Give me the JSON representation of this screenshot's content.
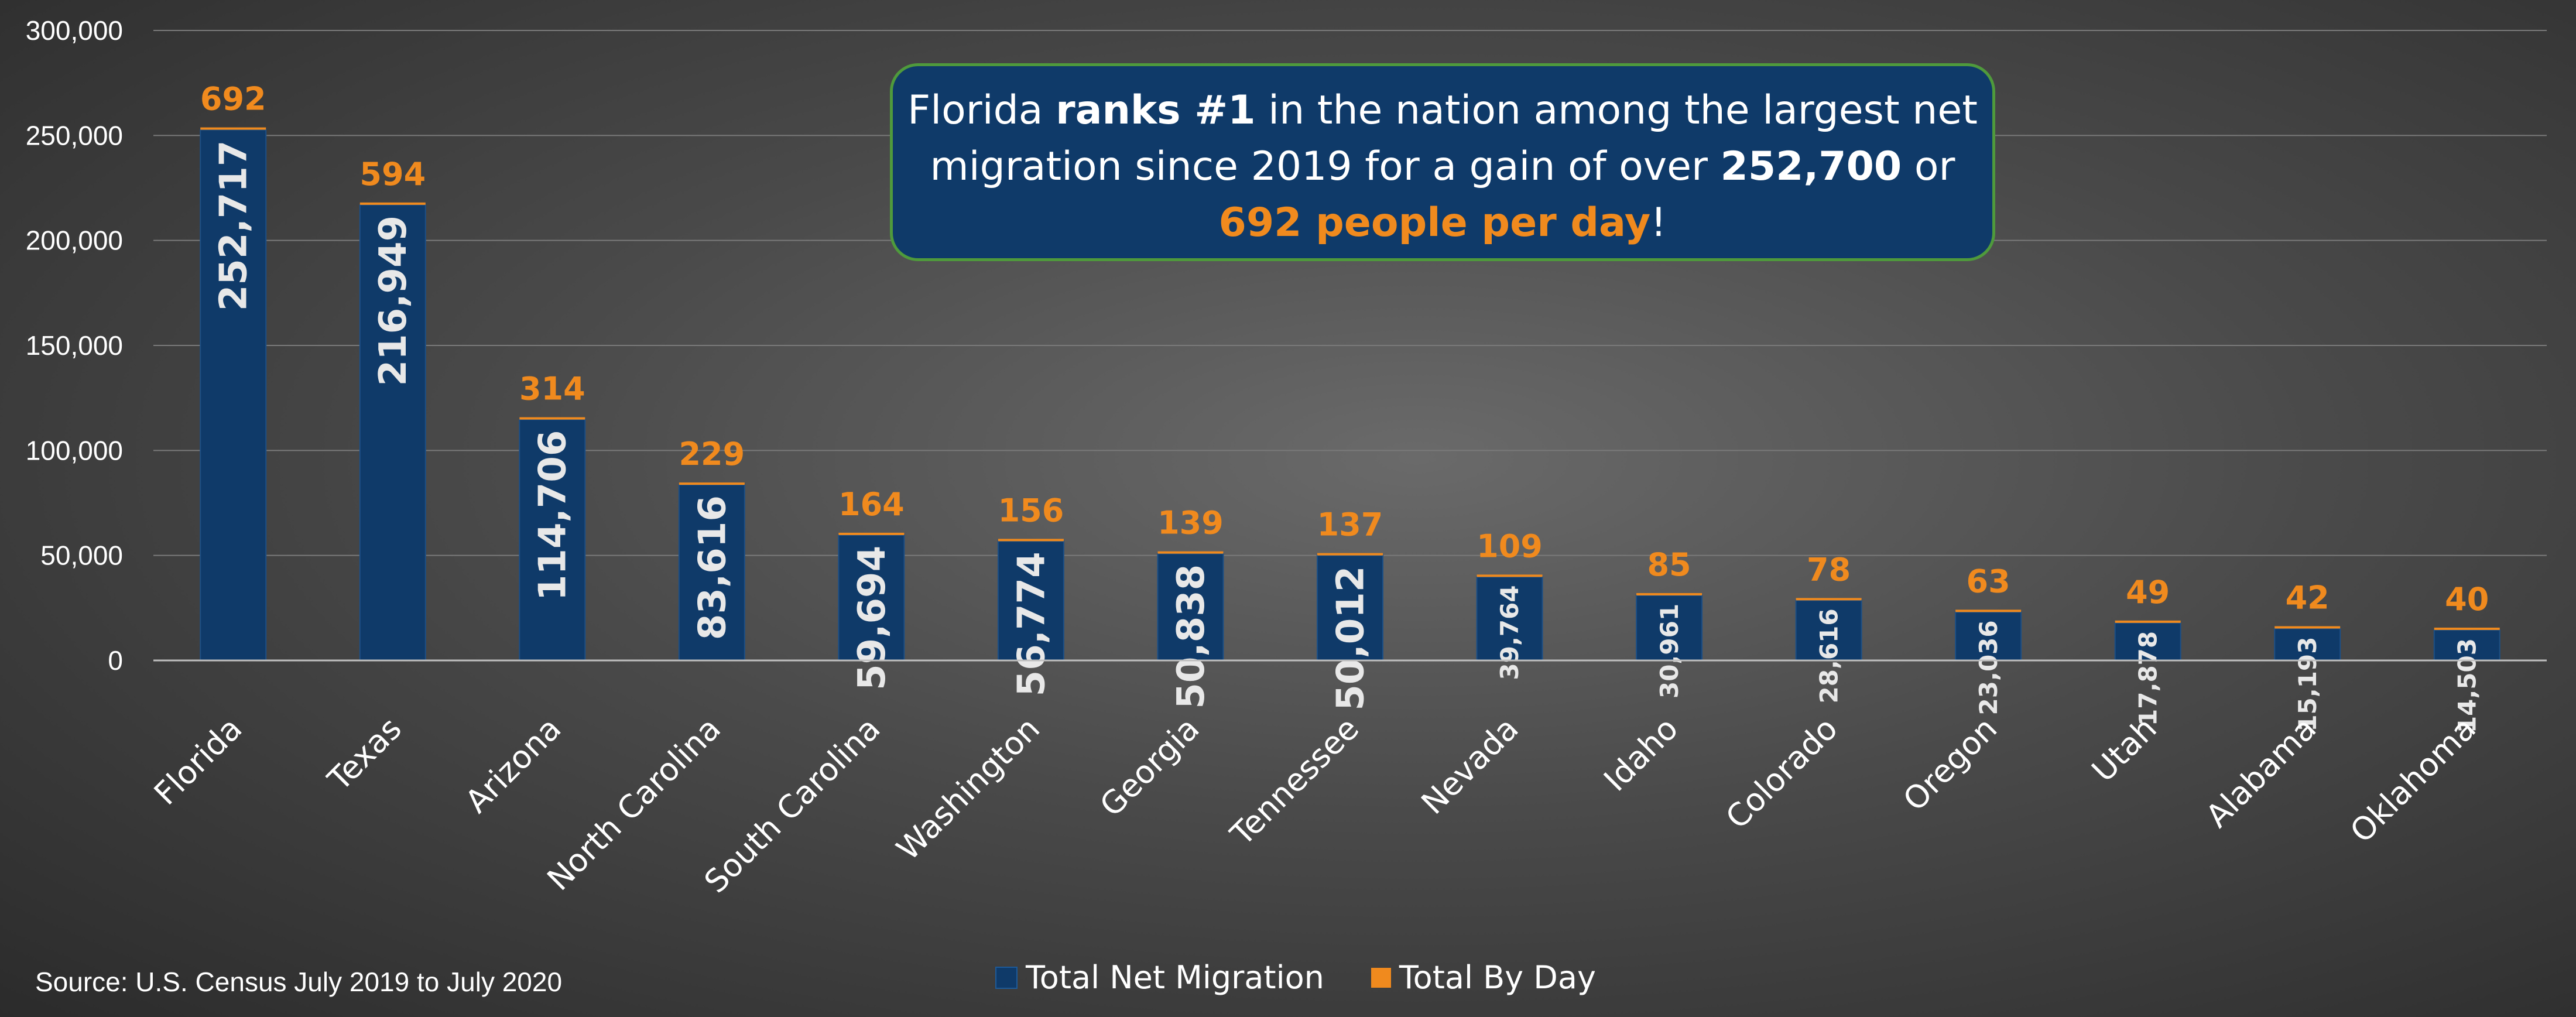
{
  "chart_data": {
    "type": "bar",
    "categories": [
      "Florida",
      "Texas",
      "Arizona",
      "North Carolina",
      "South Carolina",
      "Washington",
      "Georgia",
      "Tennessee",
      "Nevada",
      "Idaho",
      "Colorado",
      "Oregon",
      "Utah",
      "Alabama",
      "Oklahoma"
    ],
    "series": [
      {
        "name": "Total Net Migration",
        "color": "#0f3a69",
        "values": [
          252717,
          216949,
          114706,
          83616,
          59694,
          56774,
          50838,
          50012,
          39764,
          30961,
          28616,
          23036,
          17878,
          15193,
          14503
        ],
        "labels": [
          "252,717",
          "216,949",
          "114,706",
          "83,616",
          "59,694",
          "56,774",
          "50,838",
          "50,012",
          "39,764",
          "30,961",
          "28,616",
          "23,036",
          "17,878",
          "15,193",
          "14,503"
        ]
      },
      {
        "name": "Total By Day",
        "color": "#f08a1e",
        "values": [
          692,
          594,
          314,
          229,
          164,
          156,
          139,
          137,
          109,
          85,
          78,
          63,
          49,
          42,
          40
        ]
      }
    ],
    "ylim": [
      0,
      300000
    ],
    "yticks": [
      "0",
      "50,000",
      "100,000",
      "150,000",
      "200,000",
      "250,000",
      "300,000"
    ],
    "grid": true,
    "legend_position": "bottom"
  },
  "callout": {
    "p1": "Florida ",
    "b1": "ranks #1",
    "p2": " in the nation among the largest net migration since 2019 for a gain of over ",
    "b2": "252,700",
    "p3": " or ",
    "o1": "692 people per day",
    "p4": "!"
  },
  "source": "Source: U.S. Census July 2019 to July 2020"
}
